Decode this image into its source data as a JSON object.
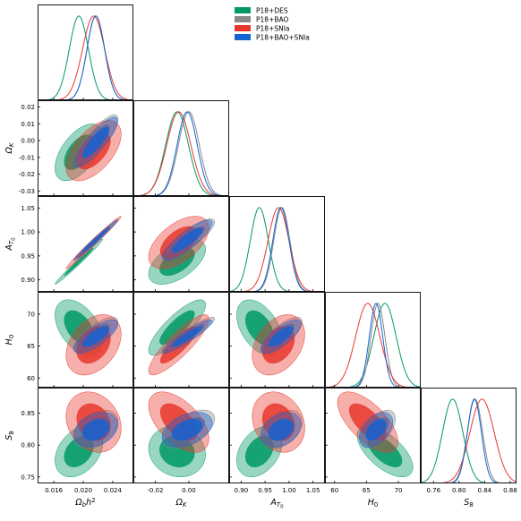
{
  "chart_data": {
    "type": "corner",
    "parameters": [
      {
        "key": "obh2",
        "label": "Ωbh²",
        "range": [
          0.0138,
          0.0268
        ],
        "ticks": [
          0.016,
          0.02,
          0.024
        ],
        "tick_labels": [
          "0.016",
          "0.020",
          "0.024"
        ]
      },
      {
        "key": "omk",
        "label": "ΩK",
        "range": [
          -0.033,
          0.024
        ],
        "ticks": [
          -0.03,
          -0.02,
          -0.01,
          0.0,
          0.01,
          0.02
        ],
        "tick_labels": [
          "-0.03",
          "-0.02",
          "-0.01",
          "0.00",
          "0.01",
          "0.02"
        ],
        "x_ticks": [
          -0.02,
          0.0
        ],
        "x_tick_labels": [
          "-0.02",
          "0.00"
        ]
      },
      {
        "key": "at0",
        "label": "AT0",
        "range": [
          0.875,
          1.075
        ],
        "ticks": [
          0.9,
          0.95,
          1.0,
          1.05
        ],
        "tick_labels": [
          "0.90",
          "0.95",
          "1.00",
          "1.05"
        ]
      },
      {
        "key": "h0",
        "label": "H0",
        "range": [
          58.5,
          73.5
        ],
        "ticks": [
          60,
          65,
          70
        ],
        "tick_labels": [
          "60",
          "65",
          "70"
        ]
      },
      {
        "key": "s8",
        "label": "S8",
        "range": [
          0.74,
          0.89
        ],
        "ticks": [
          0.76,
          0.8,
          0.84,
          0.88
        ],
        "tick_labels": [
          "0.76",
          "0.80",
          "0.84",
          "0.88"
        ],
        "y_ticks": [
          0.75,
          0.8,
          0.85
        ],
        "y_tick_labels": [
          "0.75",
          "0.80",
          "0.85"
        ]
      }
    ],
    "series": [
      {
        "name": "P18+DES",
        "color": "#009966",
        "mean": {
          "obh2": 0.0194,
          "omk": -0.007,
          "at0": 0.938,
          "h0": 67.9,
          "s8": 0.79
        },
        "sigma": {
          "obh2": 0.0013,
          "omk": 0.0068,
          "at0": 0.019,
          "h0": 1.75,
          "s8": 0.016
        },
        "corr": {
          "obh2|omk": 0.55,
          "obh2|at0": 0.99,
          "obh2|h0": -0.45,
          "obh2|s8": 0.35,
          "omk|at0": 0.55,
          "omk|h0": 0.82,
          "omk|s8": -0.12,
          "at0|h0": -0.45,
          "at0|s8": 0.35,
          "h0|s8": -0.62
        }
      },
      {
        "name": "P18+BAO",
        "color": "#888888",
        "mean": {
          "obh2": 0.0217,
          "omk": 0.0,
          "at0": 0.985,
          "h0": 66.8,
          "s8": 0.825
        },
        "sigma": {
          "obh2": 0.0012,
          "omk": 0.0062,
          "at0": 0.017,
          "h0": 1.1,
          "s8": 0.012
        },
        "corr": {
          "obh2|omk": 0.85,
          "obh2|at0": 0.99,
          "obh2|h0": 0.75,
          "obh2|s8": 0.4,
          "omk|at0": 0.85,
          "omk|h0": 0.92,
          "omk|s8": 0.55,
          "at0|h0": 0.75,
          "at0|s8": 0.4,
          "h0|s8": 0.55
        }
      },
      {
        "name": "P18+SNIa",
        "color": "#e8382d",
        "mean": {
          "obh2": 0.0214,
          "omk": -0.006,
          "at0": 0.978,
          "h0": 65.2,
          "s8": 0.836
        },
        "sigma": {
          "obh2": 0.0015,
          "omk": 0.0072,
          "at0": 0.022,
          "h0": 1.9,
          "s8": 0.019
        },
        "corr": {
          "obh2|omk": 0.55,
          "obh2|at0": 0.99,
          "obh2|h0": 0.35,
          "obh2|s8": -0.2,
          "omk|at0": 0.55,
          "omk|h0": 0.86,
          "omk|s8": -0.55,
          "at0|h0": 0.35,
          "at0|s8": -0.2,
          "h0|s8": -0.65
        }
      },
      {
        "name": "P18+BAO+SNIa",
        "color": "#1464d2",
        "mean": {
          "obh2": 0.0217,
          "omk": -0.001,
          "at0": 0.983,
          "h0": 66.5,
          "s8": 0.824
        },
        "sigma": {
          "obh2": 0.0012,
          "omk": 0.006,
          "at0": 0.017,
          "h0": 1.05,
          "s8": 0.011
        },
        "corr": {
          "obh2|omk": 0.85,
          "obh2|at0": 0.99,
          "obh2|h0": 0.75,
          "obh2|s8": 0.3,
          "omk|at0": 0.85,
          "omk|h0": 0.92,
          "omk|s8": 0.4,
          "at0|h0": 0.75,
          "at0|s8": 0.3,
          "h0|s8": 0.45
        }
      }
    ],
    "legend": {
      "placement": "top-right"
    },
    "grid": false
  }
}
